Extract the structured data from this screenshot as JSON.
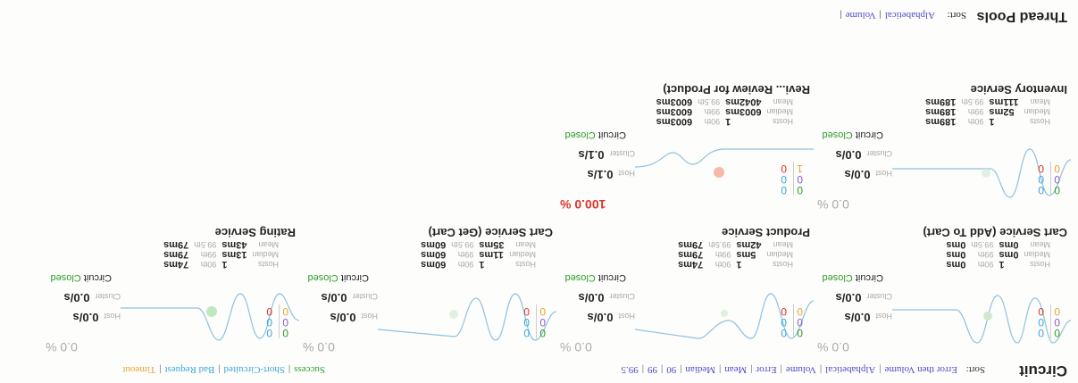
{
  "circuit": {
    "title": "Circuit",
    "sort_label": "Sort:",
    "sort_options": [
      "Error then Volume",
      "Alphabetical",
      "Volume",
      "Error",
      "Mean",
      "Median",
      "90",
      "99",
      "99.5"
    ],
    "legend": [
      "Success",
      "Short-Circuited",
      "Bad Request",
      "Timeout"
    ],
    "colors": {
      "success": "#2a9d2a",
      "short_circuited": "#3aa5dd",
      "bad_request": "#3aa5dd",
      "timeout": "#e8a23a",
      "failure": "#8a5ad5",
      "error": "#e0322a"
    }
  },
  "labels": {
    "host": "Host",
    "cluster": "Cluster",
    "circuit": "Circuit",
    "hosts": "Hosts",
    "median": "Median",
    "mean": "Mean",
    "p90": "90th",
    "p99": "99th",
    "p995": "99.5th"
  },
  "cards": [
    {
      "name": "Cart Service (Add To Cart)",
      "rate": "0.0 %",
      "counts": [
        "0",
        "0",
        "0",
        "0",
        "0",
        "0"
      ],
      "host_rate": "0.0/s",
      "cluster_rate": "0.0/s",
      "circuit_status": "Closed",
      "hosts": "1",
      "median": "0ms",
      "mean": "0ms",
      "p90": "0ms",
      "p99": "0ms",
      "p995": "0ms"
    },
    {
      "name": "Product Service",
      "rate": "0.0 %",
      "counts": [
        "0",
        "0",
        "0",
        "0",
        "0",
        "0"
      ],
      "host_rate": "0.0/s",
      "cluster_rate": "0.0/s",
      "circuit_status": "Closed",
      "hosts": "1",
      "median": "5ms",
      "mean": "42ms",
      "p90": "74ms",
      "p99": "79ms",
      "p995": "79ms"
    },
    {
      "name": "Cart Service (Get Cart)",
      "rate": "0.0 %",
      "counts": [
        "0",
        "0",
        "0",
        "0",
        "0",
        "0"
      ],
      "host_rate": "0.0/s",
      "cluster_rate": "0.0/s",
      "circuit_status": "Closed",
      "hosts": "1",
      "median": "11ms",
      "mean": "35ms",
      "p90": "60ms",
      "p99": "60ms",
      "p995": "60ms"
    },
    {
      "name": "Rating Service",
      "rate": "0.0 %",
      "counts": [
        "0",
        "0",
        "0",
        "0",
        "0",
        "0"
      ],
      "host_rate": "0.0/s",
      "cluster_rate": "0.0/s",
      "circuit_status": "Closed",
      "hosts": "1",
      "median": "13ms",
      "mean": "43ms",
      "p90": "74ms",
      "p99": "79ms",
      "p995": "79ms"
    },
    {
      "name": "Inventory Service",
      "rate": "0.0 %",
      "counts": [
        "0",
        "0",
        "0",
        "0",
        "0",
        "0"
      ],
      "host_rate": "0.0/s",
      "cluster_rate": "0.0/s",
      "circuit_status": "Closed",
      "hosts": "1",
      "median": "52ms",
      "mean": "111ms",
      "p90": "189ms",
      "p99": "189ms",
      "p995": "189ms"
    },
    {
      "name": "Revi... Review for Product)",
      "rate": "100.0 %",
      "counts": [
        "0",
        "0",
        "1",
        "0",
        "0",
        "0"
      ],
      "host_rate": "0.1/s",
      "cluster_rate": "0.1/s",
      "circuit_status": "Closed",
      "hosts": "1",
      "median": "6003ms",
      "mean": "4042ms",
      "p90": "6003ms",
      "p99": "6003ms",
      "p995": "6003ms"
    }
  ],
  "thread_pools": {
    "title": "Thread Pools",
    "sort_label": "Sort:",
    "sort_options": [
      "Alphabetical",
      "Volume"
    ]
  }
}
